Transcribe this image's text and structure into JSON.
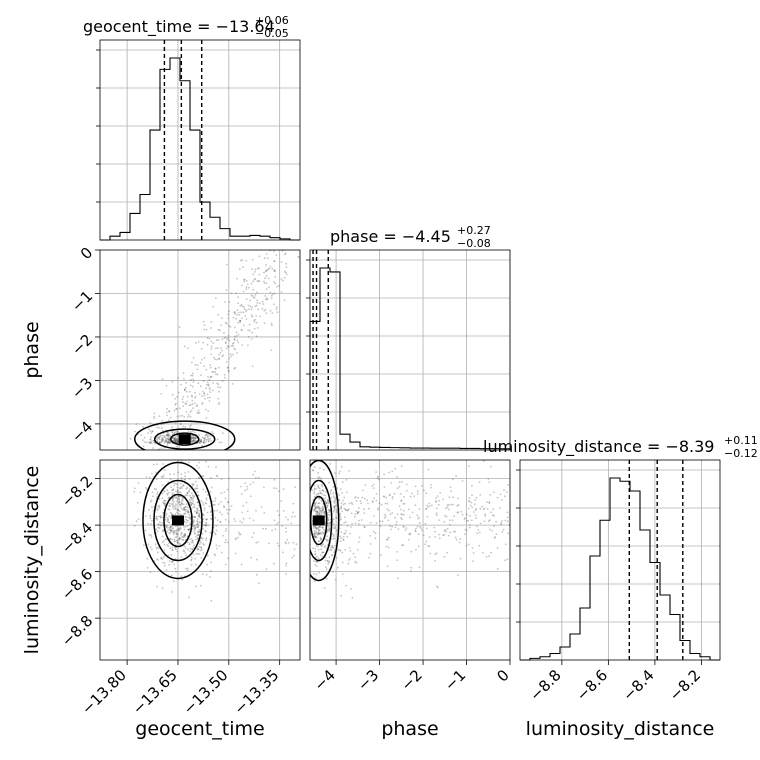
{
  "chart_data": {
    "type": "corner",
    "parameters": [
      {
        "name": "geocent_time",
        "label": "geocent_time",
        "range": [
          -13.88,
          -13.29
        ],
        "ticks": [
          -13.8,
          -13.65,
          -13.5,
          -13.35
        ],
        "tick_labels": [
          "−13.80",
          "−13.65",
          "−13.50",
          "−13.35"
        ],
        "title_main": "geocent_time = −13.64",
        "title_sup": "+0.06",
        "title_sub": "−0.05",
        "quantiles": [
          -13.69,
          -13.64,
          -13.58
        ],
        "hist_edges_start": -13.88,
        "hist_bin_width": 0.0295,
        "hist_counts": [
          0,
          1,
          2,
          7,
          12,
          29,
          45,
          48,
          42,
          29,
          10,
          6,
          3,
          1,
          1,
          1.2,
          1,
          0.6,
          0.3,
          0
        ]
      },
      {
        "name": "phase",
        "label": "phase",
        "range": [
          -4.6,
          0.0
        ],
        "ticks": [
          -4,
          -3,
          -2,
          -1,
          0
        ],
        "tick_labels": [
          "−4",
          "−3",
          "−2",
          "−1",
          "0"
        ],
        "title_main": "phase = −4.45",
        "title_sup": "+0.27",
        "title_sub": "−0.08",
        "quantiles": [
          -4.53,
          -4.45,
          -4.18
        ],
        "hist_edges_start": -4.6,
        "hist_bin_width": 0.23,
        "hist_counts": [
          65,
          92,
          90,
          8,
          4,
          1.6,
          1.4,
          1.3,
          1.2,
          1.1,
          1.0,
          1.0,
          0.9,
          0.9,
          0.9,
          0.8,
          0.8,
          0.7,
          0.7,
          0.6
        ]
      },
      {
        "name": "luminosity_distance",
        "label": "luminosity_distance",
        "range": [
          -8.98,
          -8.12
        ],
        "ticks": [
          -8.8,
          -8.6,
          -8.4,
          -8.2
        ],
        "tick_labels": [
          "−8.8",
          "−8.6",
          "−8.4",
          "−8.2"
        ],
        "title_main": "luminosity_distance = −8.39",
        "title_sup": "+0.11",
        "title_sub": "−0.12",
        "quantiles": [
          -8.51,
          -8.39,
          -8.28
        ],
        "hist_edges_start": -8.98,
        "hist_bin_width": 0.043,
        "hist_counts": [
          0,
          0.5,
          1,
          2,
          4,
          8,
          16,
          32,
          43,
          56,
          55,
          52,
          40,
          30,
          20,
          14,
          6,
          2,
          1,
          0
        ]
      }
    ],
    "pairs": [
      {
        "x": "geocent_time",
        "y": "phase",
        "density_peak": [
          -13.63,
          -4.35
        ],
        "notes": "mass near phase -4.4, tail extending to upper-right"
      },
      {
        "x": "geocent_time",
        "y": "luminosity_distance",
        "density_peak": [
          -13.65,
          -8.38
        ]
      },
      {
        "x": "phase",
        "y": "luminosity_distance",
        "density_peak": [
          -4.4,
          -8.38
        ]
      }
    ],
    "grid": true,
    "colors": {
      "line": "#000000",
      "grid": "#b0b0b0",
      "points": "#555555"
    }
  }
}
